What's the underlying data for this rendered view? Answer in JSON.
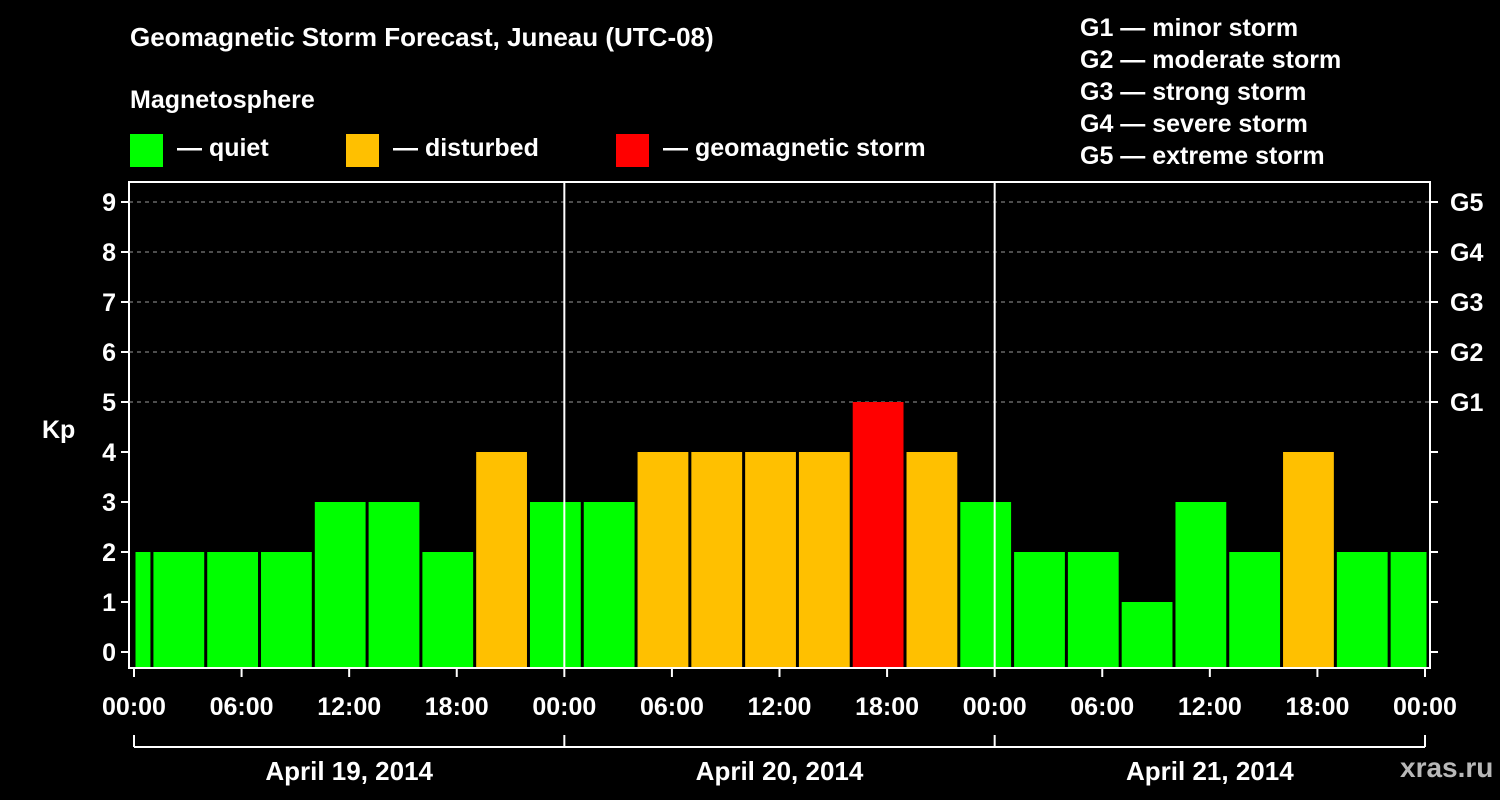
{
  "title": "Geomagnetic Storm Forecast, Juneau (UTC-08)",
  "subtitle": "Magnetosphere",
  "legend": [
    {
      "label": "— quiet",
      "color": "#00ff00"
    },
    {
      "label": "— disturbed",
      "color": "#ffc000"
    },
    {
      "label": "— geomagnetic storm",
      "color": "#ff0000"
    }
  ],
  "storm_levels": [
    "G1 — minor storm",
    "G2 — moderate storm",
    "G3 — strong storm",
    "G4 — severe storm",
    "G5 — extreme storm"
  ],
  "watermark": "xras.ru",
  "colors": {
    "quiet": "#00ff00",
    "disturbed": "#ffc000",
    "storm": "#ff0000",
    "background": "#000000",
    "axis": "#ffffff"
  },
  "chart_data": {
    "type": "bar",
    "title": "Geomagnetic Storm Forecast, Juneau (UTC-08)",
    "ylabel": "Kp",
    "ylim": [
      0,
      9
    ],
    "yticks": [
      0,
      1,
      2,
      3,
      4,
      5,
      6,
      7,
      8,
      9
    ],
    "right_ticks": [
      {
        "value": 5,
        "label": "G1"
      },
      {
        "value": 6,
        "label": "G2"
      },
      {
        "value": 7,
        "label": "G3"
      },
      {
        "value": 8,
        "label": "G4"
      },
      {
        "value": 9,
        "label": "G5"
      }
    ],
    "x_range_hours": [
      0,
      72
    ],
    "x_tick_labels": [
      "00:00",
      "06:00",
      "12:00",
      "18:00",
      "00:00",
      "06:00",
      "12:00",
      "18:00",
      "00:00",
      "06:00",
      "12:00",
      "18:00",
      "00:00"
    ],
    "day_labels": [
      "April 19, 2014",
      "April 20, 2014",
      "April 21, 2014"
    ],
    "grid": "dashed horizontal at Kp 5-9",
    "series": [
      {
        "name": "Kp",
        "bars": [
          {
            "start": -1,
            "end": 1,
            "kp": 2,
            "level": "quiet"
          },
          {
            "start": 1,
            "end": 4,
            "kp": 2,
            "level": "quiet"
          },
          {
            "start": 4,
            "end": 7,
            "kp": 2,
            "level": "quiet"
          },
          {
            "start": 7,
            "end": 10,
            "kp": 2,
            "level": "quiet"
          },
          {
            "start": 10,
            "end": 13,
            "kp": 3,
            "level": "quiet"
          },
          {
            "start": 13,
            "end": 16,
            "kp": 3,
            "level": "quiet"
          },
          {
            "start": 16,
            "end": 19,
            "kp": 2,
            "level": "quiet"
          },
          {
            "start": 19,
            "end": 22,
            "kp": 4,
            "level": "disturbed"
          },
          {
            "start": 22,
            "end": 25,
            "kp": 3,
            "level": "quiet"
          },
          {
            "start": 25,
            "end": 28,
            "kp": 3,
            "level": "quiet"
          },
          {
            "start": 28,
            "end": 31,
            "kp": 4,
            "level": "disturbed"
          },
          {
            "start": 31,
            "end": 34,
            "kp": 4,
            "level": "disturbed"
          },
          {
            "start": 34,
            "end": 37,
            "kp": 4,
            "level": "disturbed"
          },
          {
            "start": 37,
            "end": 40,
            "kp": 4,
            "level": "disturbed"
          },
          {
            "start": 40,
            "end": 43,
            "kp": 5,
            "level": "storm"
          },
          {
            "start": 43,
            "end": 46,
            "kp": 4,
            "level": "disturbed"
          },
          {
            "start": 46,
            "end": 49,
            "kp": 3,
            "level": "quiet"
          },
          {
            "start": 49,
            "end": 52,
            "kp": 2,
            "level": "quiet"
          },
          {
            "start": 52,
            "end": 55,
            "kp": 2,
            "level": "quiet"
          },
          {
            "start": 55,
            "end": 58,
            "kp": 1,
            "level": "quiet"
          },
          {
            "start": 58,
            "end": 61,
            "kp": 3,
            "level": "quiet"
          },
          {
            "start": 61,
            "end": 64,
            "kp": 2,
            "level": "quiet"
          },
          {
            "start": 64,
            "end": 67,
            "kp": 4,
            "level": "disturbed"
          },
          {
            "start": 67,
            "end": 70,
            "kp": 2,
            "level": "quiet"
          },
          {
            "start": 70,
            "end": 73,
            "kp": 2,
            "level": "quiet"
          }
        ]
      }
    ]
  }
}
